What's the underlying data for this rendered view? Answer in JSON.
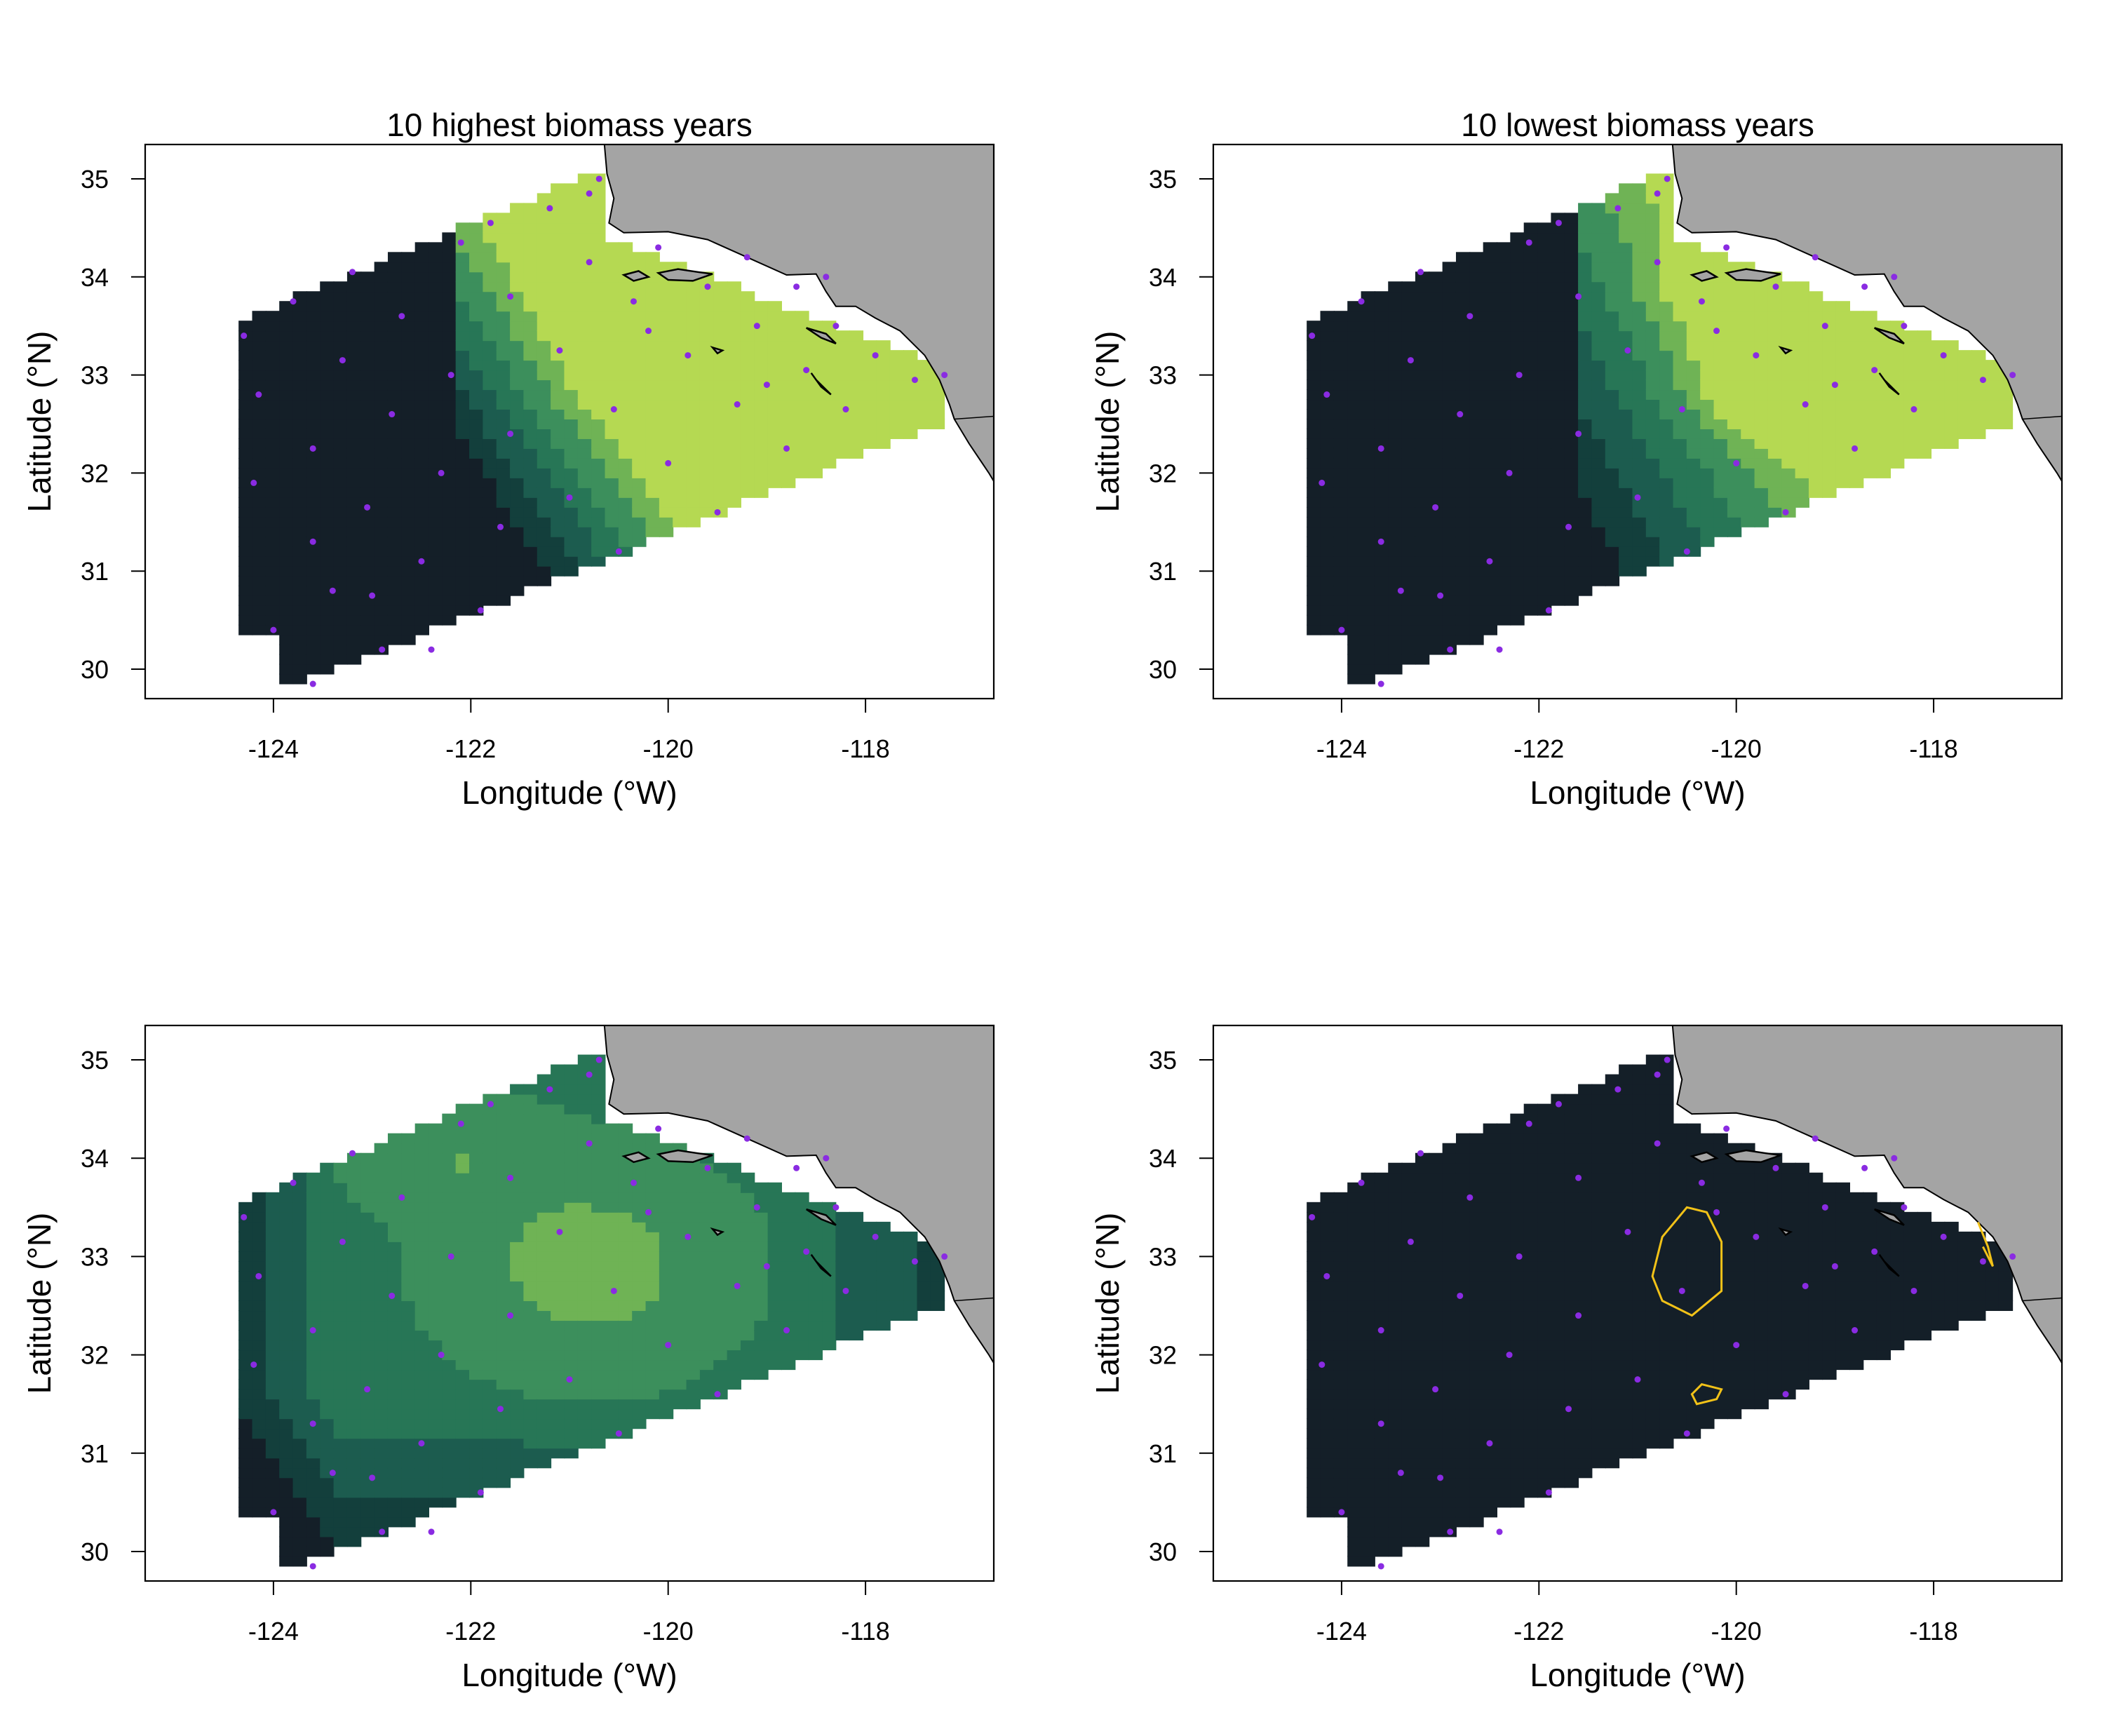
{
  "figure": {
    "colors": {
      "ocean_bg": "#ffffff",
      "land": "#a4a4a4",
      "outside_grid": "#ffffff",
      "station_dot": "#8a2be2",
      "contour": "#f2c218",
      "frame": "#000000"
    },
    "color_scale": [
      "#141f28",
      "#133f3c",
      "#1c5c4f",
      "#277656",
      "#3c8f5c",
      "#6fb355",
      "#b5d952"
    ],
    "axes": {
      "xlabel": "Longitude (°W)",
      "ylabel": "Latitude (°N)",
      "x_range": [
        -125.3,
        -116.7
      ],
      "y_range": [
        29.7,
        35.35
      ],
      "x_ticks": [
        -124,
        -122,
        -120,
        -118
      ],
      "y_ticks": [
        30,
        31,
        32,
        33,
        34,
        35
      ],
      "x_tick_labels": [
        "-124",
        "-122",
        "-120",
        "-118"
      ],
      "y_tick_labels": [
        "30",
        "31",
        "32",
        "33",
        "34",
        "35"
      ]
    },
    "panels": [
      {
        "title": "10 highest biomass years",
        "field": "high"
      },
      {
        "title": "10 lowest biomass years",
        "field": "low"
      },
      {
        "title": "",
        "field": "diff"
      },
      {
        "title": "",
        "field": "signif"
      }
    ],
    "stations": [
      [
        -124.3,
        33.4
      ],
      [
        -123.8,
        33.75
      ],
      [
        -123.3,
        33.15
      ],
      [
        -122.8,
        32.6
      ],
      [
        -122.3,
        32.0
      ],
      [
        -121.7,
        31.45
      ],
      [
        -123.2,
        34.05
      ],
      [
        -122.7,
        33.6
      ],
      [
        -122.2,
        33.0
      ],
      [
        -121.6,
        32.4
      ],
      [
        -121.0,
        31.75
      ],
      [
        -120.5,
        31.2
      ],
      [
        -122.1,
        34.35
      ],
      [
        -121.6,
        33.8
      ],
      [
        -121.1,
        33.25
      ],
      [
        -120.55,
        32.65
      ],
      [
        -120.0,
        32.1
      ],
      [
        -119.5,
        31.6
      ],
      [
        -121.2,
        34.7
      ],
      [
        -120.8,
        34.15
      ],
      [
        -120.35,
        33.75
      ],
      [
        -119.8,
        33.2
      ],
      [
        -119.3,
        32.7
      ],
      [
        -118.8,
        32.25
      ],
      [
        -120.7,
        35.0
      ],
      [
        -120.1,
        34.3
      ],
      [
        -119.6,
        33.9
      ],
      [
        -119.1,
        33.5
      ],
      [
        -118.6,
        33.05
      ],
      [
        -118.2,
        32.65
      ],
      [
        -119.2,
        34.2
      ],
      [
        -118.7,
        33.9
      ],
      [
        -118.3,
        33.5
      ],
      [
        -117.9,
        33.2
      ],
      [
        -117.5,
        32.95
      ],
      [
        -117.2,
        33.0
      ],
      [
        -124.15,
        32.8
      ],
      [
        -123.6,
        32.25
      ],
      [
        -123.05,
        31.65
      ],
      [
        -122.5,
        31.1
      ],
      [
        -121.9,
        30.6
      ],
      [
        -124.2,
        31.9
      ],
      [
        -123.6,
        31.3
      ],
      [
        -123.0,
        30.75
      ],
      [
        -122.4,
        30.2
      ],
      [
        -124.0,
        30.4
      ],
      [
        -123.4,
        30.8
      ],
      [
        -123.6,
        29.85
      ],
      [
        -122.9,
        30.2
      ],
      [
        -120.2,
        33.45
      ],
      [
        -119.0,
        32.9
      ],
      [
        -121.8,
        34.55
      ],
      [
        -120.8,
        34.85
      ],
      [
        -118.4,
        34.0
      ]
    ]
  }
}
